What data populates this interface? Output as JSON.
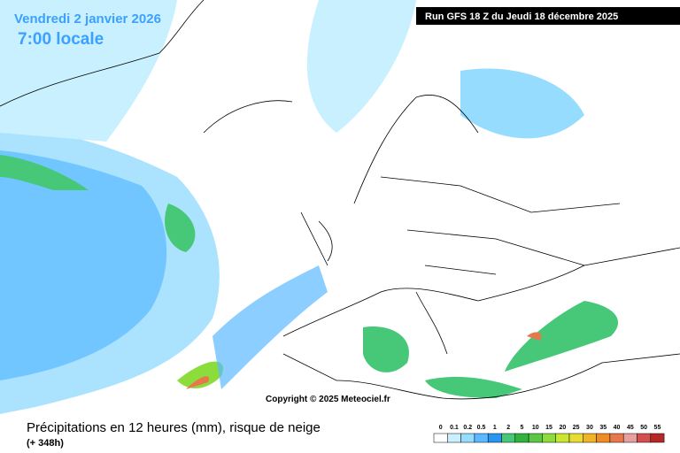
{
  "header": {
    "date": "Vendredi 2 janvier 2026",
    "time": "7:00 locale",
    "run": "Run GFS 18 Z du Jeudi 18 décembre 2025"
  },
  "map": {
    "copyright": "Copyright © 2025 Meteociel.fr"
  },
  "footer": {
    "title": "Précipitations en 12 heures (mm), risque de neige",
    "lead": "(+ 348h)"
  },
  "legend": {
    "labels": [
      0,
      0.1,
      0.2,
      0.5,
      1,
      2,
      5,
      10,
      15,
      20,
      25,
      30,
      35,
      40,
      45,
      50,
      55
    ],
    "colors": [
      "#ffffff",
      "#c8f0ff",
      "#96dcff",
      "#5ab9ff",
      "#2896f0",
      "#46c878",
      "#32b43c",
      "#5ac846",
      "#8cdc3c",
      "#c8e632",
      "#e6dc32",
      "#f0b428",
      "#f08c28",
      "#e6784b",
      "#e6a0a0",
      "#d25050",
      "#b42828"
    ]
  }
}
